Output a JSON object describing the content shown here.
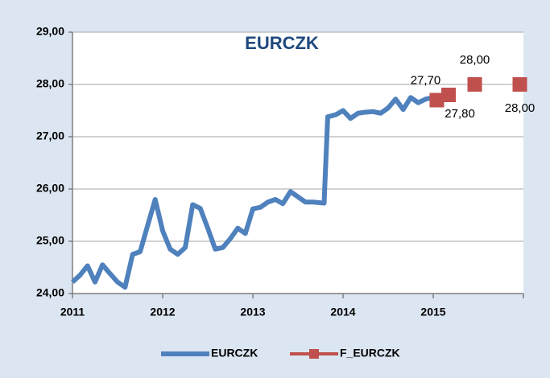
{
  "chart_data": {
    "type": "line",
    "title": "EURCZK",
    "xlim": [
      2011,
      2016
    ],
    "xticks": [
      2011,
      2012,
      2013,
      2014,
      2015
    ],
    "ylim": [
      24,
      29
    ],
    "yticks": [
      {
        "value": 24,
        "label": "24,00"
      },
      {
        "value": 25,
        "label": "25,00"
      },
      {
        "value": 26,
        "label": "26,00"
      },
      {
        "value": 27,
        "label": "27,00"
      },
      {
        "value": 28,
        "label": "28,00"
      },
      {
        "value": 29,
        "label": "29,00"
      }
    ],
    "grid": true,
    "legend": "bottom",
    "series": [
      {
        "name": "EURCZK",
        "color": "#4f81bd",
        "x": [
          2011.0,
          2011.083,
          2011.167,
          2011.25,
          2011.333,
          2011.417,
          2011.5,
          2011.583,
          2011.667,
          2011.75,
          2011.833,
          2011.917,
          2012.0,
          2012.083,
          2012.167,
          2012.25,
          2012.333,
          2012.417,
          2012.5,
          2012.583,
          2012.667,
          2012.75,
          2012.833,
          2012.917,
          2013.0,
          2013.083,
          2013.167,
          2013.25,
          2013.333,
          2013.417,
          2013.5,
          2013.583,
          2013.667,
          2013.79,
          2013.83,
          2013.917,
          2014.0,
          2014.083,
          2014.167,
          2014.25,
          2014.333,
          2014.417,
          2014.5,
          2014.583,
          2014.667,
          2014.75,
          2014.833,
          2014.917,
          2015.0
        ],
        "values": [
          24.22,
          24.35,
          24.53,
          24.22,
          24.55,
          24.38,
          24.22,
          24.12,
          24.75,
          24.8,
          25.3,
          25.8,
          25.2,
          24.85,
          24.75,
          24.88,
          25.7,
          25.63,
          25.25,
          24.85,
          24.88,
          25.05,
          25.25,
          25.15,
          25.62,
          25.65,
          25.75,
          25.8,
          25.72,
          25.95,
          25.85,
          25.75,
          25.75,
          25.73,
          27.38,
          27.42,
          27.5,
          27.35,
          27.45,
          27.47,
          27.48,
          27.45,
          27.55,
          27.72,
          27.52,
          27.75,
          27.65,
          27.72,
          27.75
        ]
      },
      {
        "name": "F_EURCZK",
        "color": "#c0504d",
        "x": [
          2015.04,
          2015.17,
          2015.46,
          2015.96
        ],
        "values": [
          27.7,
          27.8,
          28.0,
          28.0
        ],
        "value_labels": [
          "27,70",
          "27,80",
          "28,00",
          "28,00"
        ]
      }
    ]
  }
}
